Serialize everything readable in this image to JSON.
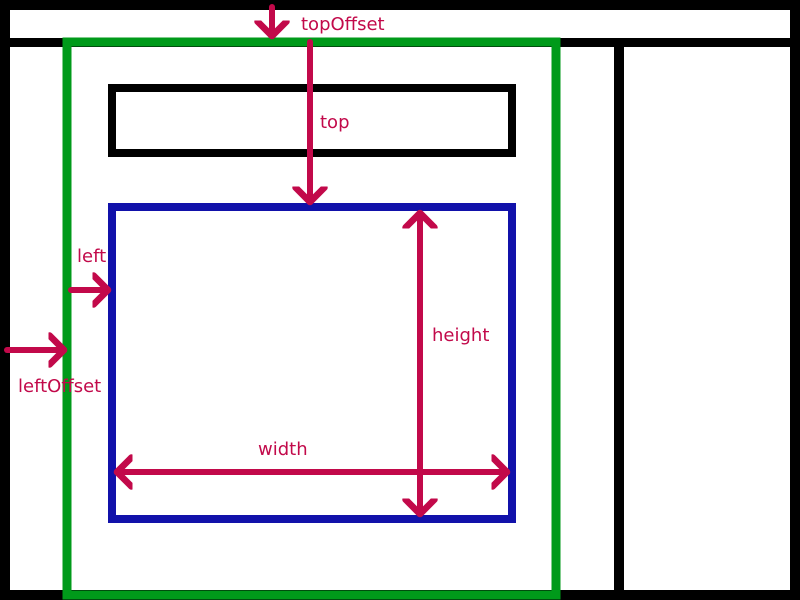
{
  "colors": {
    "background": "#000000",
    "panel": "#ffffff",
    "offset_parent": "#009a1a",
    "element": "#1111aa",
    "arrow": "#c2094a"
  },
  "labels": {
    "top_offset": "topOffset",
    "top": "top",
    "left": "left",
    "left_offset": "leftOffset",
    "height": "height",
    "width": "width"
  }
}
